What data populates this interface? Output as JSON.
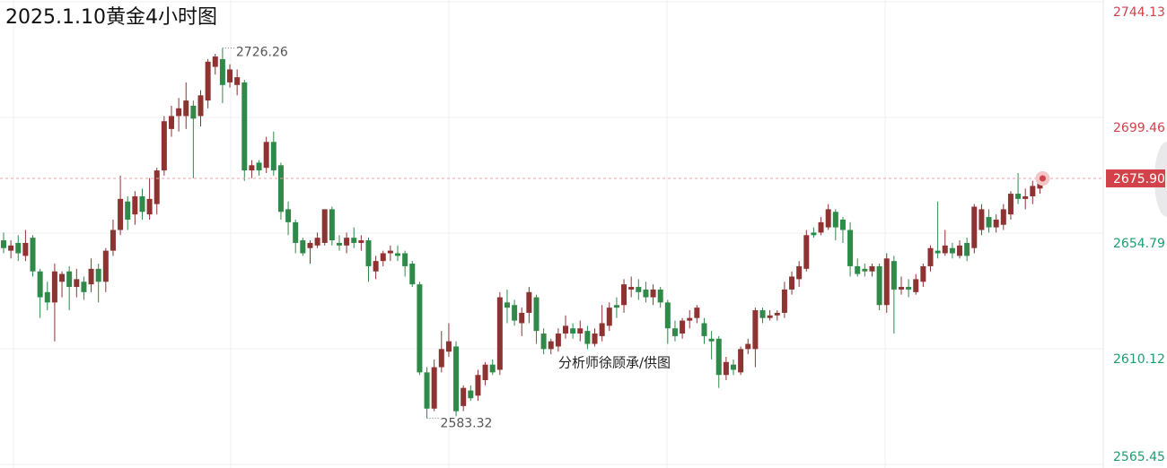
{
  "chart_data": {
    "type": "candlestick",
    "title": "2025.1.10黄金4小时图",
    "watermark": "分析师徐顾承/供图",
    "open": [
      2652,
      2648,
      2651,
      2646,
      2653,
      2640,
      2632,
      2628,
      2636,
      2640,
      2634,
      2636,
      2635,
      2641,
      2636,
      2648,
      2656,
      2667,
      2662,
      2669,
      2662,
      2666,
      2679,
      2695,
      2700,
      2700,
      2704,
      2700,
      2706,
      2719,
      2722,
      2713,
      2712,
      2713,
      2679,
      2682,
      2680,
      2690,
      2681,
      2664,
      2659,
      2652,
      2649,
      2650,
      2651,
      2664,
      2651,
      2650,
      2653,
      2651,
      2652,
      2640,
      2644,
      2647,
      2647,
      2647,
      2643,
      2635,
      2601,
      2587,
      2603,
      2609,
      2611,
      2588,
      2594,
      2592,
      2598,
      2604,
      2602,
      2628,
      2627,
      2620,
      2624,
      2630,
      2616,
      2610,
      2611,
      2616,
      2618,
      2616,
      2617,
      2612,
      2615,
      2619,
      2627,
      2627,
      2633,
      2634,
      2633,
      2630,
      2633,
      2628,
      2618,
      2616,
      2621,
      2622,
      2620,
      2614,
      2614,
      2600,
      2604,
      2601,
      2610,
      2610,
      2625,
      2622,
      2623,
      2624,
      2633,
      2637,
      2641,
      2655,
      2655,
      2657,
      2663,
      2660,
      2656,
      2642,
      2641,
      2640,
      2642,
      2627,
      2644,
      2633,
      2634,
      2632,
      2636,
      2642,
      2648,
      2647,
      2649,
      2646,
      2651,
      2649,
      2656,
      2661,
      2657,
      2658,
      2662,
      2670,
      2668,
      2669,
      2672
    ],
    "high": [
      2655,
      2652,
      2654,
      2656,
      2654,
      2641,
      2636,
      2643,
      2640,
      2642,
      2641,
      2638,
      2645,
      2643,
      2649,
      2660,
      2677,
      2669,
      2671,
      2672,
      2676,
      2680,
      2700,
      2704,
      2707,
      2713,
      2706,
      2710,
      2722,
      2724,
      2726.26,
      2720,
      2718,
      2714,
      2683,
      2683,
      2692,
      2694,
      2682,
      2667,
      2660,
      2653,
      2652,
      2655,
      2664,
      2665,
      2654,
      2655,
      2657,
      2654,
      2653,
      2646,
      2648,
      2650,
      2650,
      2648,
      2644,
      2636,
      2603,
      2606,
      2617,
      2620,
      2613,
      2596,
      2596,
      2602,
      2605,
      2606,
      2632,
      2633,
      2629,
      2626,
      2634,
      2631,
      2618,
      2614,
      2618,
      2623,
      2620,
      2621,
      2619,
      2618,
      2627,
      2628,
      2630,
      2637,
      2638,
      2637,
      2636,
      2635,
      2634,
      2629,
      2621,
      2622,
      2625,
      2627,
      2622,
      2617,
      2615,
      2607,
      2606,
      2611,
      2614,
      2626,
      2626,
      2625,
      2625,
      2636,
      2640,
      2644,
      2656,
      2657,
      2661,
      2666,
      2664,
      2661,
      2659,
      2645,
      2643,
      2643,
      2643,
      2647,
      2646,
      2638,
      2637,
      2639,
      2643,
      2650,
      2667,
      2656,
      2651,
      2652,
      2653,
      2666,
      2666,
      2664,
      2662,
      2666,
      2671,
      2678,
      2672,
      2675,
      2677
    ],
    "low": [
      2647,
      2645,
      2644,
      2644,
      2638,
      2622,
      2625,
      2613,
      2630,
      2625,
      2630,
      2629,
      2632,
      2628,
      2632,
      2646,
      2654,
      2656,
      2658,
      2660,
      2660,
      2662,
      2677,
      2692,
      2694,
      2695,
      2676,
      2696,
      2703,
      2716,
      2705,
      2711,
      2708,
      2675,
      2676,
      2677,
      2678,
      2677,
      2660,
      2654,
      2647,
      2646,
      2643,
      2649,
      2650,
      2650,
      2648,
      2647,
      2649,
      2648,
      2636,
      2637,
      2642,
      2644,
      2644,
      2638,
      2634,
      2600,
      2583.32,
      2586,
      2601,
      2607,
      2584,
      2586,
      2590,
      2590,
      2596,
      2600,
      2600,
      2620,
      2619,
      2615,
      2620,
      2612,
      2608,
      2608,
      2609,
      2614,
      2614,
      2613,
      2610,
      2611,
      2613,
      2617,
      2622,
      2624,
      2630,
      2629,
      2628,
      2627,
      2626,
      2612,
      2613,
      2614,
      2618,
      2620,
      2612,
      2606,
      2595,
      2598,
      2600,
      2600,
      2608,
      2603,
      2620,
      2621,
      2621,
      2622,
      2631,
      2634,
      2640,
      2653,
      2654,
      2656,
      2652,
      2651,
      2638,
      2638,
      2638,
      2638,
      2625,
      2624,
      2616,
      2631,
      2630,
      2631,
      2634,
      2640,
      2645,
      2646,
      2645,
      2645,
      2644,
      2647,
      2654,
      2655,
      2655,
      2656,
      2660,
      2666,
      2664,
      2666,
      2670
    ],
    "close": [
      2649,
      2650,
      2647,
      2651,
      2640,
      2630,
      2628,
      2640,
      2639,
      2634,
      2637,
      2632,
      2641,
      2636,
      2648,
      2656,
      2668,
      2660,
      2669,
      2663,
      2668,
      2679,
      2698,
      2700,
      2703,
      2706,
      2699,
      2708,
      2721,
      2723,
      2712,
      2718,
      2715,
      2679,
      2681,
      2679,
      2690,
      2679,
      2663,
      2659,
      2651,
      2647,
      2651,
      2653,
      2664,
      2652,
      2650,
      2653,
      2651,
      2652,
      2642,
      2644,
      2647,
      2648,
      2646,
      2642,
      2635,
      2601,
      2587,
      2603,
      2610,
      2613,
      2586,
      2595,
      2591,
      2600,
      2604,
      2601,
      2630,
      2626,
      2621,
      2624,
      2632,
      2617,
      2610,
      2613,
      2616,
      2619,
      2616,
      2618,
      2612,
      2616,
      2620,
      2626,
      2626,
      2635,
      2634,
      2632,
      2630,
      2633,
      2628,
      2618,
      2615,
      2621,
      2622,
      2626,
      2615,
      2613,
      2600,
      2605,
      2602,
      2610,
      2612,
      2625,
      2622,
      2623,
      2624,
      2633,
      2638,
      2642,
      2654,
      2654,
      2659,
      2664,
      2657,
      2656,
      2642,
      2639,
      2640,
      2642,
      2627,
      2645,
      2633,
      2634,
      2633,
      2637,
      2642,
      2649,
      2647,
      2650,
      2647,
      2650,
      2646,
      2665,
      2664,
      2657,
      2660,
      2664,
      2670,
      2668,
      2669,
      2673,
      2675.9
    ],
    "up_color": "#8e3232",
    "down_color": "#2f8a49",
    "ylim": [
      2565.45,
      2744.13
    ],
    "yticks": [
      2744.13,
      2699.46,
      2654.79,
      2610.12,
      2565.45
    ],
    "grid": true,
    "high_annotation": 2726.26,
    "low_annotation": 2583.32,
    "last_price": {
      "value": 2675.9,
      "label": "2675.90"
    },
    "axis_up_color": "#d2424a",
    "axis_down_color": "#1e9e6e"
  }
}
